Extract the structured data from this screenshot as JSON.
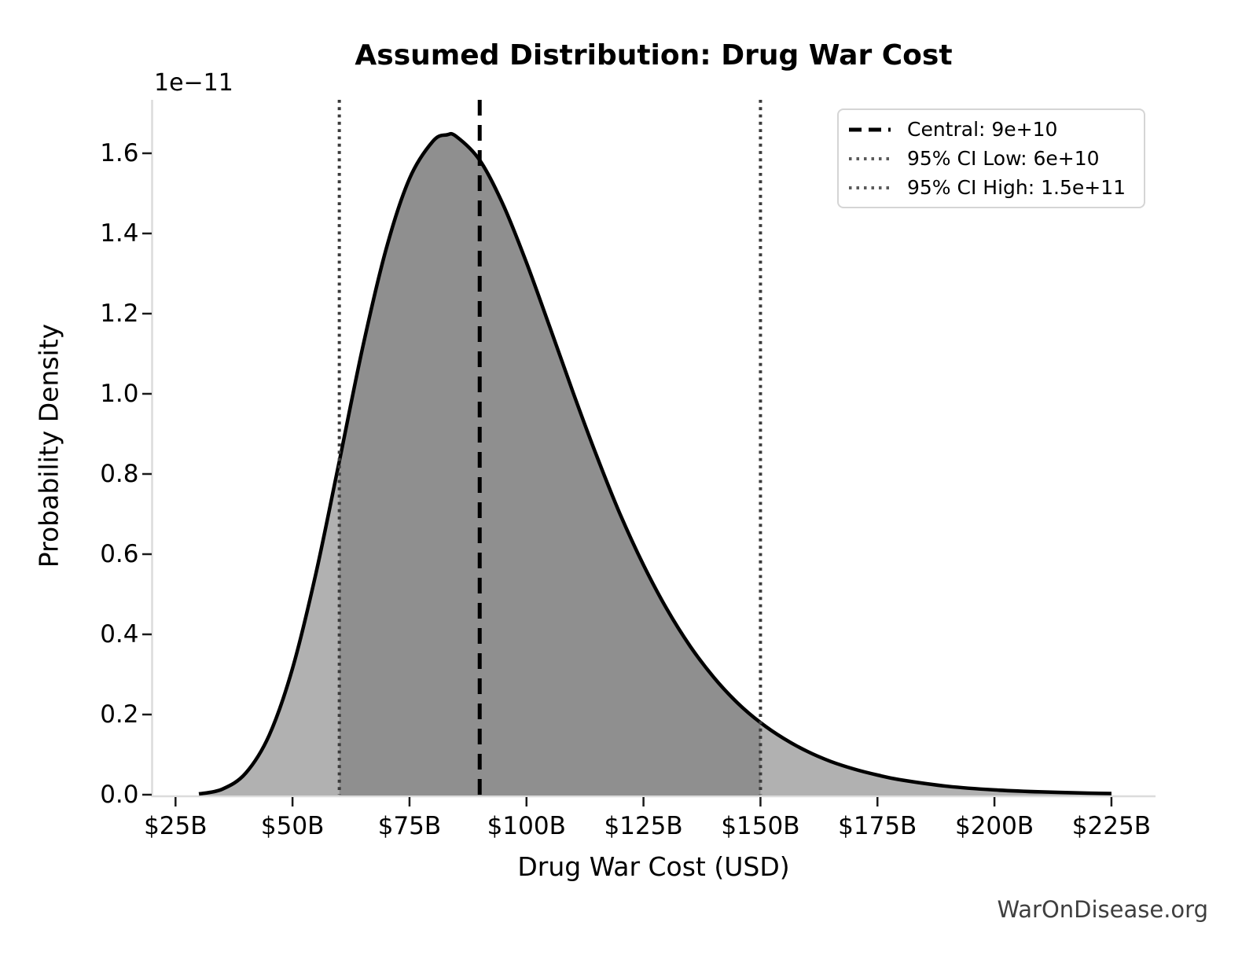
{
  "chart_data": {
    "type": "area",
    "title": "Assumed Distribution: Drug War Cost",
    "xlabel": "Drug War Cost (USD)",
    "ylabel": "Probability Density",
    "y_offset_label": "1e−11",
    "watermark": "WarOnDisease.org",
    "xlim_billions": [
      20,
      234.6
    ],
    "ylim_1e11": [
      0,
      1.733
    ],
    "grid": false,
    "legend_position": "upper right",
    "x_ticks_B": [
      25,
      50,
      75,
      100,
      125,
      150,
      175,
      200,
      225
    ],
    "x_tick_labels": [
      "$25B",
      "$50B",
      "$75B",
      "$100B",
      "$125B",
      "$150B",
      "$175B",
      "$200B",
      "$225B"
    ],
    "y_ticks_1e11": [
      0.0,
      0.2,
      0.4,
      0.6,
      0.8,
      1.0,
      1.2,
      1.4,
      1.6
    ],
    "y_tick_labels": [
      "0.0",
      "0.2",
      "0.4",
      "0.6",
      "0.8",
      "1.0",
      "1.2",
      "1.4",
      "1.6"
    ],
    "central_B": 90,
    "ci_low_B": 60,
    "ci_high_B": 150,
    "central_value": "9e+10",
    "ci_low_value": "6e+10",
    "ci_high_value": "1.5e+11",
    "curve": {
      "x_B": [
        30,
        35,
        40,
        45,
        50,
        55,
        60,
        65,
        70,
        75,
        80,
        83,
        85,
        90,
        95,
        100,
        105,
        110,
        115,
        120,
        125,
        130,
        135,
        140,
        145,
        150,
        155,
        160,
        165,
        170,
        175,
        180,
        190,
        200,
        210,
        220,
        225
      ],
      "density_1e11": [
        0.002,
        0.014,
        0.054,
        0.148,
        0.315,
        0.552,
        0.832,
        1.116,
        1.361,
        1.537,
        1.63,
        1.646,
        1.642,
        1.583,
        1.472,
        1.327,
        1.166,
        1.002,
        0.845,
        0.7,
        0.573,
        0.463,
        0.37,
        0.293,
        0.23,
        0.18,
        0.14,
        0.108,
        0.083,
        0.064,
        0.049,
        0.037,
        0.021,
        0.012,
        0.007,
        0.004,
        0.003
      ]
    }
  },
  "legend": {
    "items": [
      {
        "label": "Central: 9e+10",
        "style": "dashed",
        "color": "#000000"
      },
      {
        "label": "95% CI Low: 6e+10",
        "style": "dotted",
        "color": "#5a5a5a"
      },
      {
        "label": "95% CI High: 1.5e+11",
        "style": "dotted",
        "color": "#5a5a5a"
      }
    ]
  },
  "colors": {
    "curve": "#000000",
    "fill_outer": "#b1b1b1",
    "fill_inner": "#8f8f8f",
    "central_line": "#000000",
    "ci_line": "#3a3a3a",
    "spine": "#dcdcdc",
    "tick": "#1a1a1a"
  }
}
